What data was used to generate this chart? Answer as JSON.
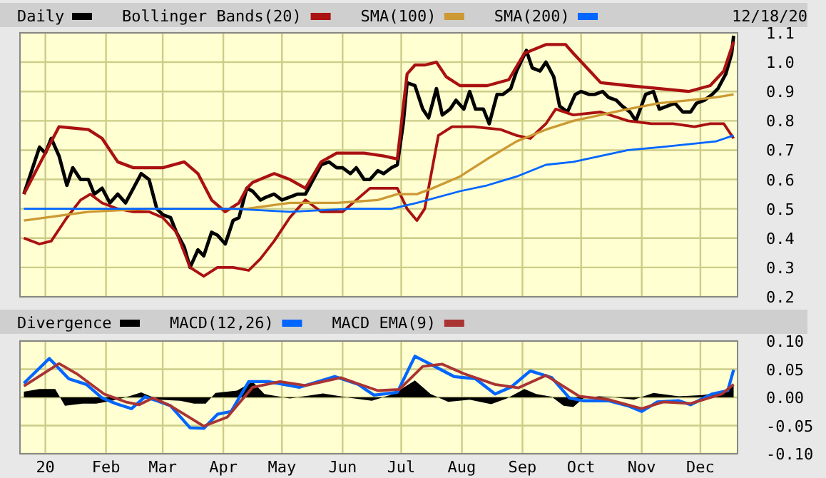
{
  "chart_data": [
    {
      "type": "line",
      "annotations": [
        "12/18/20"
      ],
      "legend": "top",
      "grid": true,
      "tick_labels": "y",
      "xlim": [
        "2019-12-19",
        "2020-12-20"
      ],
      "xticks": [
        {
          "value": "2020-01-01",
          "label": null
        },
        {
          "value": "2020-02-01",
          "label": null
        },
        {
          "value": "2020-03-01",
          "label": null
        },
        {
          "value": "2020-04-01",
          "label": null
        },
        {
          "value": "2020-05-01",
          "label": null
        },
        {
          "value": "2020-06-01",
          "label": null
        },
        {
          "value": "2020-07-01",
          "label": null
        },
        {
          "value": "2020-08-01",
          "label": null
        },
        {
          "value": "2020-09-01",
          "label": null
        },
        {
          "value": "2020-10-01",
          "label": null
        },
        {
          "value": "2020-11-01",
          "label": null
        },
        {
          "value": "2020-12-01",
          "label": null
        }
      ],
      "ylim": [
        0.2,
        1.1
      ],
      "yticks": [
        0.2,
        0.3,
        0.4,
        0.5,
        0.6,
        0.7,
        0.8,
        0.9,
        {
          "value": 1,
          "label": "1.0"
        },
        1.1
      ],
      "series": [
        {
          "name": "Daily",
          "color": "#000000",
          "x": [
            "2019-12-21",
            "2019-12-25",
            "2019-12-29",
            "2020-01-01",
            "2020-01-04",
            "2020-01-08",
            "2020-01-12",
            "2020-01-15",
            "2020-01-19",
            "2020-01-23",
            "2020-01-26",
            "2020-01-30",
            "2020-02-03",
            "2020-02-07",
            "2020-02-11",
            "2020-02-15",
            "2020-02-19",
            "2020-02-23",
            "2020-02-27",
            "2020-03-01",
            "2020-03-05",
            "2020-03-08",
            "2020-03-12",
            "2020-03-15",
            "2020-03-19",
            "2020-03-22",
            "2020-03-26",
            "2020-03-29",
            "2020-04-02",
            "2020-04-06",
            "2020-04-09",
            "2020-04-13",
            "2020-04-16",
            "2020-04-20",
            "2020-04-23",
            "2020-04-27",
            "2020-05-01",
            "2020-05-05",
            "2020-05-09",
            "2020-05-13",
            "2020-05-17",
            "2020-05-21",
            "2020-05-25",
            "2020-05-29",
            "2020-06-01",
            "2020-06-05",
            "2020-06-08",
            "2020-06-12",
            "2020-06-15",
            "2020-06-19",
            "2020-06-22",
            "2020-06-26",
            "2020-06-29",
            "2020-07-02",
            "2020-07-04",
            "2020-07-08",
            "2020-07-12",
            "2020-07-15",
            "2020-07-19",
            "2020-07-22",
            "2020-07-26",
            "2020-07-29",
            "2020-08-02",
            "2020-08-05",
            "2020-08-08",
            "2020-08-12",
            "2020-08-15",
            "2020-08-19",
            "2020-08-22",
            "2020-08-26",
            "2020-08-29",
            "2020-09-03",
            "2020-09-06",
            "2020-09-10",
            "2020-09-13",
            "2020-09-17",
            "2020-09-20",
            "2020-09-24",
            "2020-09-28",
            "2020-10-01",
            "2020-10-05",
            "2020-10-08",
            "2020-10-12",
            "2020-10-15",
            "2020-10-19",
            "2020-10-22",
            "2020-10-26",
            "2020-10-29",
            "2020-11-03",
            "2020-11-07",
            "2020-11-10",
            "2020-11-14",
            "2020-11-18",
            "2020-11-22",
            "2020-11-26",
            "2020-11-29",
            "2020-12-03",
            "2020-12-07",
            "2020-12-10",
            "2020-12-14",
            "2020-12-17",
            "2020-12-18"
          ],
          "values": [
            0.55,
            0.63,
            0.71,
            0.69,
            0.74,
            0.68,
            0.58,
            0.64,
            0.6,
            0.6,
            0.55,
            0.57,
            0.52,
            0.55,
            0.52,
            0.57,
            0.62,
            0.6,
            0.5,
            0.48,
            0.47,
            0.42,
            0.37,
            0.3,
            0.36,
            0.34,
            0.42,
            0.41,
            0.38,
            0.46,
            0.47,
            0.57,
            0.56,
            0.53,
            0.54,
            0.55,
            0.53,
            0.54,
            0.55,
            0.55,
            0.6,
            0.65,
            0.66,
            0.64,
            0.64,
            0.62,
            0.64,
            0.6,
            0.6,
            0.63,
            0.62,
            0.64,
            0.65,
            0.79,
            0.93,
            0.92,
            0.84,
            0.81,
            0.91,
            0.82,
            0.84,
            0.87,
            0.84,
            0.9,
            0.84,
            0.84,
            0.79,
            0.89,
            0.89,
            0.91,
            0.97,
            1.04,
            0.98,
            0.97,
            1.0,
            0.95,
            0.85,
            0.83,
            0.89,
            0.9,
            0.89,
            0.89,
            0.9,
            0.88,
            0.87,
            0.85,
            0.83,
            0.8,
            0.89,
            0.9,
            0.84,
            0.85,
            0.86,
            0.83,
            0.83,
            0.86,
            0.87,
            0.89,
            0.91,
            0.96,
            1.03,
            1.09
          ]
        },
        {
          "name": "Bollinger Bands(20)",
          "color": "#aa1111",
          "x": [
            "2019-12-21",
            "2020-01-08",
            "2020-01-23",
            "2020-01-30",
            "2020-02-07",
            "2020-02-15",
            "2020-03-01",
            "2020-03-12",
            "2020-03-19",
            "2020-03-26",
            "2020-04-02",
            "2020-04-09",
            "2020-04-13",
            "2020-04-16",
            "2020-04-27",
            "2020-05-05",
            "2020-05-13",
            "2020-05-21",
            "2020-05-29",
            "2020-06-12",
            "2020-06-22",
            "2020-06-29",
            "2020-07-04",
            "2020-07-08",
            "2020-07-13",
            "2020-07-19",
            "2020-07-24",
            "2020-07-31",
            "2020-08-14",
            "2020-08-25",
            "2020-09-02",
            "2020-09-13",
            "2020-09-23",
            "2020-09-27",
            "2020-10-04",
            "2020-10-11",
            "2020-10-25",
            "2020-11-10",
            "2020-11-25",
            "2020-12-06",
            "2020-12-13",
            "2020-12-18"
          ],
          "values": [
            0.55,
            0.78,
            0.77,
            0.74,
            0.66,
            0.64,
            0.64,
            0.66,
            0.62,
            0.53,
            0.49,
            0.52,
            0.57,
            0.59,
            0.62,
            0.6,
            0.57,
            0.66,
            0.69,
            0.69,
            0.68,
            0.67,
            0.96,
            0.99,
            0.99,
            1.0,
            0.95,
            0.92,
            0.92,
            0.94,
            1.03,
            1.06,
            1.06,
            1.03,
            0.98,
            0.93,
            0.92,
            0.91,
            0.9,
            0.92,
            0.97,
            1.07
          ]
        },
        {
          "color": "#aa1111",
          "x": [
            "2019-12-21",
            "2019-12-29",
            "2020-01-04",
            "2020-01-12",
            "2020-01-19",
            "2020-01-24",
            "2020-01-30",
            "2020-02-07",
            "2020-02-15",
            "2020-02-23",
            "2020-03-01",
            "2020-03-08",
            "2020-03-15",
            "2020-03-22",
            "2020-03-29",
            "2020-04-06",
            "2020-04-14",
            "2020-04-20",
            "2020-04-27",
            "2020-05-05",
            "2020-05-13",
            "2020-05-21",
            "2020-05-25",
            "2020-06-01",
            "2020-06-08",
            "2020-06-15",
            "2020-06-22",
            "2020-06-29",
            "2020-07-04",
            "2020-07-09",
            "2020-07-13",
            "2020-07-20",
            "2020-07-27",
            "2020-08-07",
            "2020-08-21",
            "2020-08-29",
            "2020-09-05",
            "2020-09-13",
            "2020-09-18",
            "2020-09-27",
            "2020-10-11",
            "2020-10-25",
            "2020-11-06",
            "2020-11-17",
            "2020-11-28",
            "2020-12-06",
            "2020-12-13",
            "2020-12-18"
          ],
          "values": [
            0.4,
            0.38,
            0.39,
            0.47,
            0.53,
            0.55,
            0.52,
            0.5,
            0.49,
            0.49,
            0.47,
            0.42,
            0.3,
            0.27,
            0.3,
            0.3,
            0.29,
            0.33,
            0.39,
            0.47,
            0.53,
            0.49,
            0.49,
            0.49,
            0.53,
            0.57,
            0.57,
            0.57,
            0.5,
            0.46,
            0.5,
            0.75,
            0.78,
            0.78,
            0.77,
            0.75,
            0.74,
            0.79,
            0.84,
            0.82,
            0.83,
            0.8,
            0.79,
            0.79,
            0.78,
            0.79,
            0.79,
            0.74
          ]
        },
        {
          "name": "SMA(100)",
          "color": "#cc9933",
          "x": [
            "2019-12-21",
            "2020-01-23",
            "2020-02-23",
            "2020-03-22",
            "2020-04-13",
            "2020-05-05",
            "2020-05-29",
            "2020-06-19",
            "2020-06-29",
            "2020-07-09",
            "2020-07-17",
            "2020-07-31",
            "2020-08-14",
            "2020-08-29",
            "2020-09-13",
            "2020-09-27",
            "2020-10-11",
            "2020-10-25",
            "2020-11-10",
            "2020-11-25",
            "2020-12-09",
            "2020-12-18"
          ],
          "values": [
            0.46,
            0.49,
            0.5,
            0.5,
            0.5,
            0.52,
            0.52,
            0.53,
            0.55,
            0.55,
            0.57,
            0.61,
            0.67,
            0.73,
            0.77,
            0.8,
            0.82,
            0.84,
            0.86,
            0.87,
            0.88,
            0.89
          ]
        },
        {
          "name": "SMA(200)",
          "color": "#0066ff",
          "x": [
            "2019-12-21",
            "2020-02-07",
            "2020-03-08",
            "2020-04-06",
            "2020-05-05",
            "2020-06-05",
            "2020-06-26",
            "2020-07-09",
            "2020-07-31",
            "2020-08-14",
            "2020-08-29",
            "2020-09-13",
            "2020-09-27",
            "2020-10-11",
            "2020-10-25",
            "2020-11-10",
            "2020-11-25",
            "2020-12-09",
            "2020-12-18"
          ],
          "values": [
            0.5,
            0.5,
            0.5,
            0.5,
            0.49,
            0.5,
            0.5,
            0.52,
            0.56,
            0.58,
            0.61,
            0.65,
            0.66,
            0.68,
            0.7,
            0.71,
            0.72,
            0.73,
            0.75
          ]
        }
      ]
    },
    {
      "type": "line",
      "legend": "top",
      "grid": true,
      "xlim": [
        "2019-12-19",
        "2020-12-20"
      ],
      "xticks": [
        {
          "value": "2020-01-01",
          "label": "20"
        },
        {
          "value": "2020-02-01",
          "label": "Feb"
        },
        {
          "value": "2020-03-01",
          "label": "Mar"
        },
        {
          "value": "2020-04-01",
          "label": "Apr"
        },
        {
          "value": "2020-05-01",
          "label": "May"
        },
        {
          "value": "2020-06-01",
          "label": "Jun"
        },
        {
          "value": "2020-07-01",
          "label": "Jul"
        },
        {
          "value": "2020-08-01",
          "label": "Aug"
        },
        {
          "value": "2020-09-01",
          "label": "Sep"
        },
        {
          "value": "2020-10-01",
          "label": "Oct"
        },
        {
          "value": "2020-11-01",
          "label": "Nov"
        },
        {
          "value": "2020-12-01",
          "label": "Dec"
        }
      ],
      "ylim": [
        -0.1,
        0.1
      ],
      "yticks": [
        {
          "value": -0.1,
          "label": "-0.10"
        },
        {
          "value": -0.05,
          "label": "-0.05"
        },
        {
          "value": 0,
          "label": "0.00"
        },
        {
          "value": 0.05,
          "label": "0.05"
        },
        {
          "value": 0.1,
          "label": "0.10"
        }
      ],
      "series": [
        {
          "name": "Divergence",
          "type": "area",
          "color": "#000000",
          "x": [
            "2019-12-21",
            "2019-12-29",
            "2020-01-06",
            "2020-01-11",
            "2020-01-20",
            "2020-01-27",
            "2020-02-04",
            "2020-02-11",
            "2020-02-19",
            "2020-02-28",
            "2020-03-10",
            "2020-03-17",
            "2020-03-23",
            "2020-03-28",
            "2020-04-08",
            "2020-04-16",
            "2020-04-22",
            "2020-05-05",
            "2020-05-22",
            "2020-06-05",
            "2020-06-16",
            "2020-06-27",
            "2020-07-08",
            "2020-07-16",
            "2020-07-25",
            "2020-08-05",
            "2020-08-16",
            "2020-08-24",
            "2020-09-02",
            "2020-09-08",
            "2020-09-16",
            "2020-09-22",
            "2020-09-27",
            "2020-10-02",
            "2020-10-10",
            "2020-10-18",
            "2020-10-28",
            "2020-11-07",
            "2020-11-20",
            "2020-12-02",
            "2020-12-12",
            "2020-12-18"
          ],
          "values": [
            0.01,
            0.015,
            0.015,
            -0.015,
            -0.011,
            -0.011,
            -0.006,
            0,
            0.009,
            -0.004,
            -0.006,
            -0.011,
            -0.011,
            0.008,
            0.012,
            0.028,
            0.006,
            -0.002,
            0.007,
            -0.001,
            -0.006,
            0.006,
            0.03,
            0.006,
            -0.008,
            -0.004,
            -0.012,
            -0.002,
            0.015,
            0.006,
            0.001,
            -0.015,
            -0.017,
            -0.002,
            0.002,
            0,
            -0.004,
            0.008,
            0.002,
            0.004,
            0.009,
            0.023
          ]
        },
        {
          "name": "MACD(12,26)",
          "color": "#0066ff",
          "x": [
            "2019-12-21",
            "2020-01-03",
            "2020-01-13",
            "2020-01-22",
            "2020-01-30",
            "2020-02-06",
            "2020-02-14",
            "2020-02-21",
            "2020-02-27",
            "2020-03-05",
            "2020-03-15",
            "2020-03-22",
            "2020-03-29",
            "2020-04-05",
            "2020-04-14",
            "2020-04-24",
            "2020-05-10",
            "2020-05-28",
            "2020-06-09",
            "2020-06-17",
            "2020-06-29",
            "2020-07-08",
            "2020-07-17",
            "2020-07-28",
            "2020-08-08",
            "2020-08-18",
            "2020-08-26",
            "2020-09-05",
            "2020-09-16",
            "2020-09-25",
            "2020-10-02",
            "2020-10-15",
            "2020-10-25",
            "2020-11-01",
            "2020-11-09",
            "2020-11-20",
            "2020-11-26",
            "2020-12-07",
            "2020-12-15",
            "2020-12-18"
          ],
          "values": [
            0.025,
            0.069,
            0.033,
            0.023,
            -0.001,
            -0.011,
            -0.02,
            0.001,
            -0.006,
            -0.015,
            -0.054,
            -0.055,
            -0.03,
            -0.025,
            0.028,
            0.028,
            0.018,
            0.037,
            0.023,
            0.004,
            0.009,
            0.073,
            0.057,
            0.037,
            0.033,
            0.006,
            0.018,
            0.047,
            0.035,
            -0.001,
            -0.006,
            -0.006,
            -0.015,
            -0.025,
            -0.008,
            -0.006,
            -0.013,
            0.006,
            0.012,
            0.049
          ]
        },
        {
          "name": "MACD EMA(9)",
          "color": "#aa3333",
          "x": [
            "2019-12-21",
            "2020-01-08",
            "2020-01-17",
            "2020-01-31",
            "2020-02-11",
            "2020-02-18",
            "2020-02-25",
            "2020-03-05",
            "2020-03-22",
            "2020-04-03",
            "2020-04-16",
            "2020-04-30",
            "2020-05-13",
            "2020-05-31",
            "2020-06-19",
            "2020-06-30",
            "2020-07-12",
            "2020-07-22",
            "2020-08-02",
            "2020-08-18",
            "2020-08-30",
            "2020-09-13",
            "2020-09-30",
            "2020-10-15",
            "2020-11-01",
            "2020-11-12",
            "2020-11-26",
            "2020-12-12",
            "2020-12-18"
          ],
          "values": [
            0.02,
            0.06,
            0.042,
            0.006,
            -0.008,
            -0.013,
            -0.001,
            -0.015,
            -0.051,
            -0.035,
            0.018,
            0.028,
            0.021,
            0.035,
            0.012,
            0.014,
            0.055,
            0.059,
            0.042,
            0.023,
            0.017,
            0.039,
            0.002,
            -0.004,
            -0.02,
            -0.008,
            -0.011,
            0.006,
            0.023
          ]
        }
      ]
    }
  ]
}
